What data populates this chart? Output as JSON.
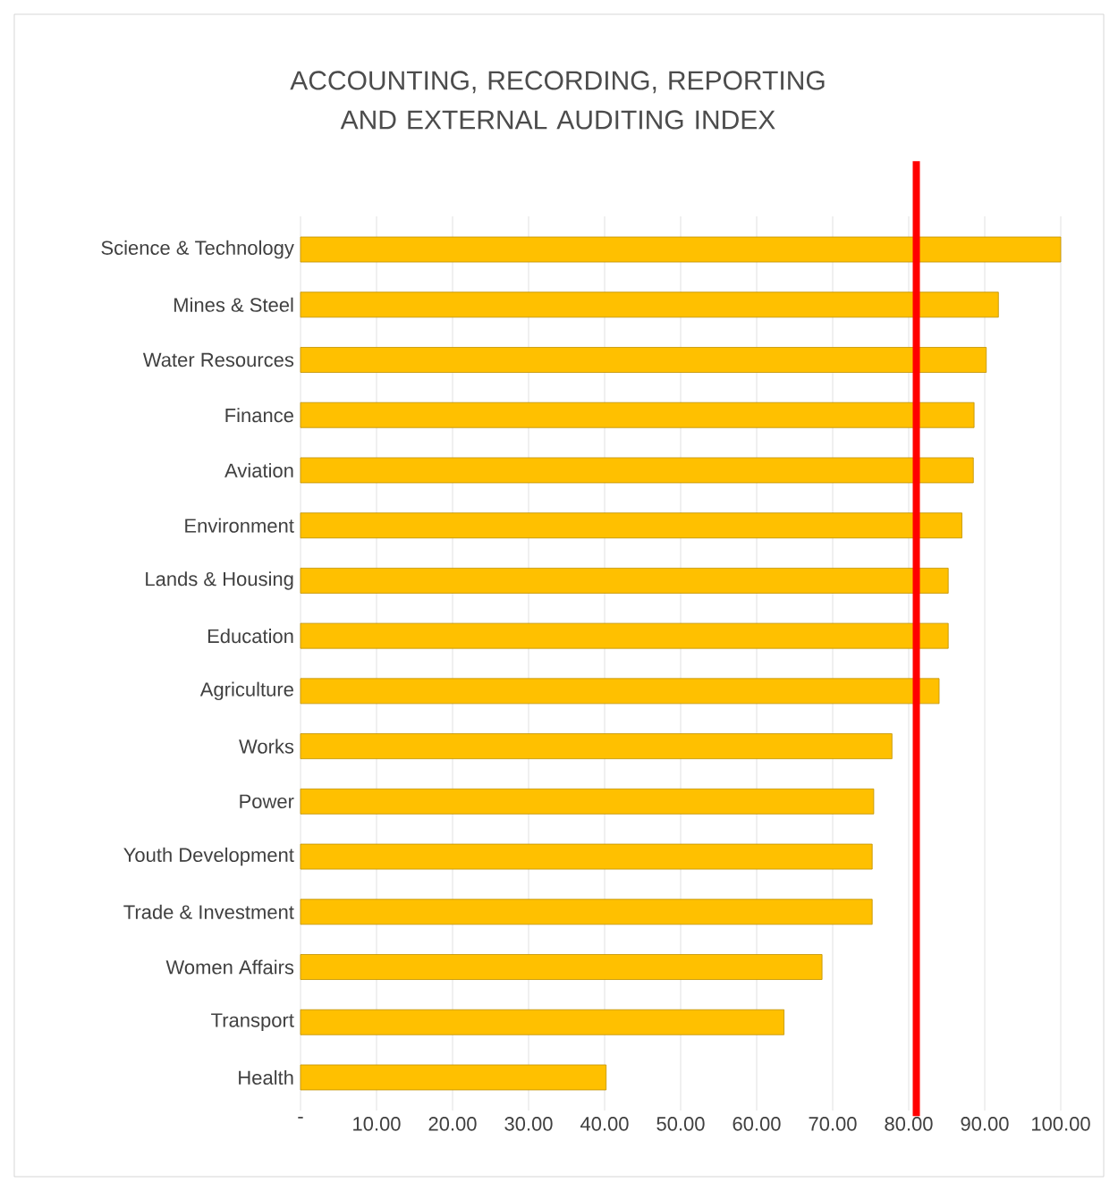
{
  "chart_data": {
    "type": "bar",
    "orientation": "horizontal",
    "title": "ACCOUNTING, RECORDING, REPORTING AND EXTERNAL AUDITING INDEX",
    "categories": [
      "Science & Technology",
      "Mines & Steel",
      "Water Resources",
      "Finance",
      "Aviation",
      "Environment",
      "Lands & Housing",
      "Education",
      "Agriculture",
      "Works",
      "Power",
      "Youth Development",
      "Trade & Investment",
      "Women Affairs",
      "Transport",
      "Health"
    ],
    "values": [
      100,
      91.8,
      90.2,
      88.6,
      88.5,
      87,
      85.2,
      85.2,
      84,
      77.8,
      75.4,
      75.2,
      75.2,
      68.6,
      63.6,
      40.2
    ],
    "color": "#ffc000",
    "xlim": [
      0,
      100
    ],
    "xticks": [
      {
        "value": 0,
        "label": "-"
      },
      {
        "value": 10,
        "label": "10.00"
      },
      {
        "value": 20,
        "label": "20.00"
      },
      {
        "value": 30,
        "label": "30.00"
      },
      {
        "value": 40,
        "label": "40.00"
      },
      {
        "value": 50,
        "label": "50.00"
      },
      {
        "value": 60,
        "label": "60.00"
      },
      {
        "value": 70,
        "label": "70.00"
      },
      {
        "value": 80,
        "label": "80.00"
      },
      {
        "value": 90,
        "label": "90.00"
      },
      {
        "value": 100,
        "label": "100.00"
      }
    ],
    "grid": "x",
    "ref_lines": [
      {
        "axis": "x",
        "value": 81,
        "color": "#ff0000"
      }
    ]
  }
}
